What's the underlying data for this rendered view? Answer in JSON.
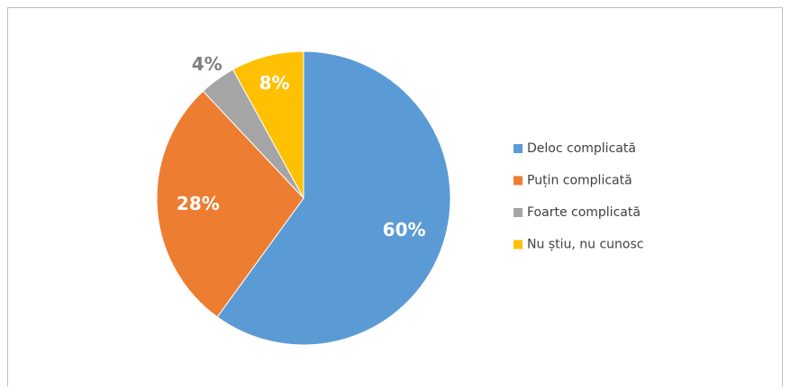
{
  "chart_data": {
    "type": "pie",
    "categories": [
      "Deloc complicată",
      "Puțin complicată",
      "Foarte complicată",
      "Nu știu, nu cunosc"
    ],
    "values": [
      60,
      28,
      4,
      8
    ],
    "value_labels": [
      "60%",
      "28%",
      "4%",
      "8%"
    ],
    "colors": [
      "#5b9bd5",
      "#ed7d31",
      "#a5a5a5",
      "#ffc000"
    ],
    "legend": "right"
  }
}
